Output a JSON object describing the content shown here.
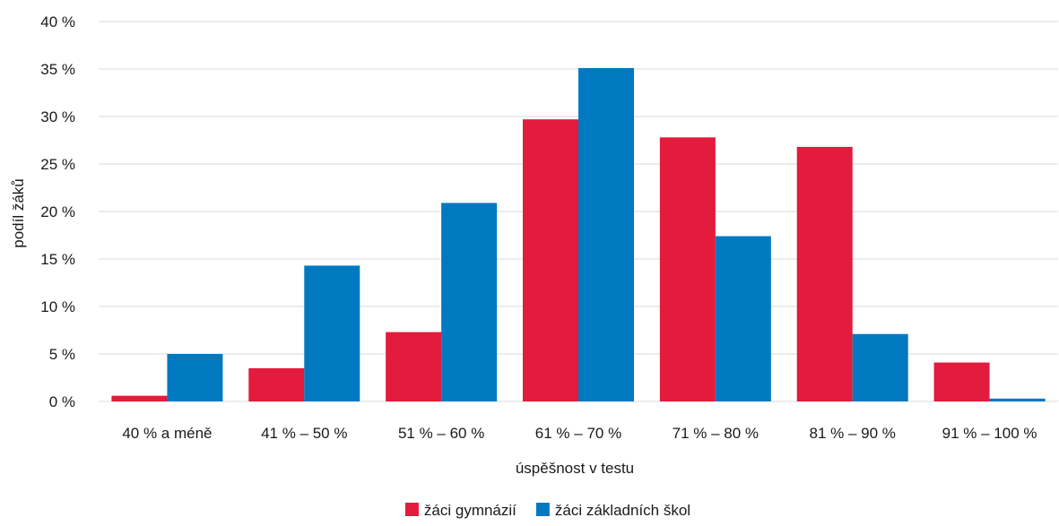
{
  "chart_data": {
    "type": "bar",
    "title": "",
    "xlabel": "úspěšnost v testu",
    "ylabel": "podíl žáků",
    "ylim": [
      0,
      40
    ],
    "yticks": [
      "0 %",
      "5 %",
      "10 %",
      "15 %",
      "20 %",
      "25 %",
      "30 %",
      "35 %",
      "40 %"
    ],
    "categories": [
      "40 % a méně",
      "41 % – 50 %",
      "51 % – 60 %",
      "61 % – 70 %",
      "71 % – 80 %",
      "81 % – 90 %",
      "91 % – 100 %"
    ],
    "series": [
      {
        "name": "žáci gymnázií",
        "color": "#e31b3c",
        "values": [
          0.6,
          3.5,
          7.3,
          29.7,
          27.8,
          26.8,
          4.1
        ]
      },
      {
        "name": "žáci základních škol",
        "color": "#0079c1",
        "values": [
          5.0,
          14.3,
          20.9,
          35.1,
          17.4,
          7.1,
          0.3
        ]
      }
    ],
    "grid": true,
    "gridColor": "#d9d9d9",
    "legend": "bottom-center"
  }
}
